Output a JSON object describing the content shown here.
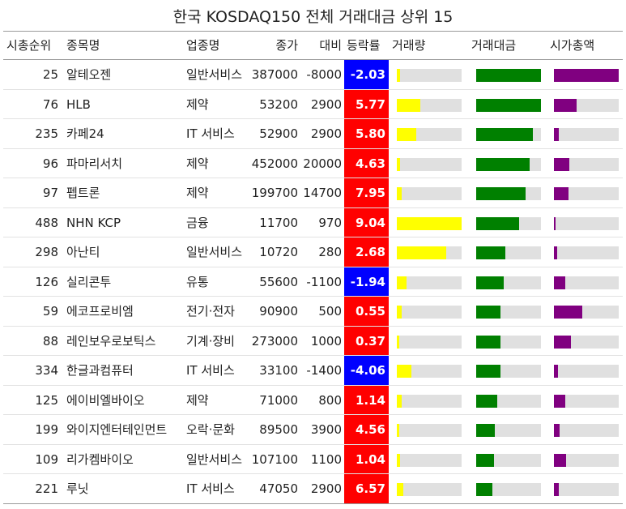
{
  "chart_data": {
    "type": "table",
    "title": "한국 KOSDAQ150 전체 거래대금 상위 15",
    "columns": [
      "시총순위",
      "종목명",
      "업종명",
      "종가",
      "대비",
      "등락률",
      "거래량",
      "거래대금",
      "시가총액"
    ],
    "colors": {
      "up": "#ff0000",
      "down": "#0000ff",
      "volume": "#ffff00",
      "trading_value": "#008000",
      "market_cap": "#800080",
      "bar_track": "#e0e0e0"
    },
    "bar_scale_note": "bar values are fractions of the column maximum",
    "rows": [
      {
        "rank": "25",
        "name": "알테오젠",
        "sector": "일반서비스",
        "close": "387000",
        "diff": "-8000",
        "change": "-2.03",
        "volume_frac": 0.05,
        "value_frac": 1.0,
        "cap_frac": 1.0
      },
      {
        "rank": "76",
        "name": "HLB",
        "sector": "제약",
        "close": "53200",
        "diff": "2900",
        "change": "5.77",
        "volume_frac": 0.36,
        "value_frac": 1.0,
        "cap_frac": 0.35
      },
      {
        "rank": "235",
        "name": "카페24",
        "sector": "IT 서비스",
        "close": "52900",
        "diff": "2900",
        "change": "5.80",
        "volume_frac": 0.3,
        "value_frac": 0.87,
        "cap_frac": 0.07
      },
      {
        "rank": "96",
        "name": "파마리서치",
        "sector": "제약",
        "close": "452000",
        "diff": "20000",
        "change": "4.63",
        "volume_frac": 0.05,
        "value_frac": 0.82,
        "cap_frac": 0.24
      },
      {
        "rank": "97",
        "name": "펩트론",
        "sector": "제약",
        "close": "199700",
        "diff": "14700",
        "change": "7.95",
        "volume_frac": 0.07,
        "value_frac": 0.76,
        "cap_frac": 0.23
      },
      {
        "rank": "488",
        "name": "NHN KCP",
        "sector": "금융",
        "close": "11700",
        "diff": "970",
        "change": "9.04",
        "volume_frac": 1.0,
        "value_frac": 0.66,
        "cap_frac": 0.02
      },
      {
        "rank": "298",
        "name": "아난티",
        "sector": "일반서비스",
        "close": "10720",
        "diff": "280",
        "change": "2.68",
        "volume_frac": 0.76,
        "value_frac": 0.45,
        "cap_frac": 0.05
      },
      {
        "rank": "126",
        "name": "실리콘투",
        "sector": "유통",
        "close": "55600",
        "diff": "-1100",
        "change": "-1.94",
        "volume_frac": 0.15,
        "value_frac": 0.42,
        "cap_frac": 0.17
      },
      {
        "rank": "59",
        "name": "에코프로비엠",
        "sector": "전기·전자",
        "close": "90900",
        "diff": "500",
        "change": "0.55",
        "volume_frac": 0.08,
        "value_frac": 0.38,
        "cap_frac": 0.44
      },
      {
        "rank": "88",
        "name": "레인보우로보틱스",
        "sector": "기계·장비",
        "close": "273000",
        "diff": "1000",
        "change": "0.37",
        "volume_frac": 0.04,
        "value_frac": 0.38,
        "cap_frac": 0.26
      },
      {
        "rank": "334",
        "name": "한글과컴퓨터",
        "sector": "IT 서비스",
        "close": "33100",
        "diff": "-1400",
        "change": "-4.06",
        "volume_frac": 0.22,
        "value_frac": 0.38,
        "cap_frac": 0.06
      },
      {
        "rank": "125",
        "name": "에이비엘바이오",
        "sector": "제약",
        "close": "71000",
        "diff": "800",
        "change": "1.14",
        "volume_frac": 0.08,
        "value_frac": 0.32,
        "cap_frac": 0.17
      },
      {
        "rank": "199",
        "name": "와이지엔터테인먼트",
        "sector": "오락·문화",
        "close": "89500",
        "diff": "3900",
        "change": "4.56",
        "volume_frac": 0.04,
        "value_frac": 0.29,
        "cap_frac": 0.09
      },
      {
        "rank": "109",
        "name": "리가켐바이오",
        "sector": "일반서비스",
        "close": "107100",
        "diff": "1100",
        "change": "1.04",
        "volume_frac": 0.05,
        "value_frac": 0.27,
        "cap_frac": 0.19
      },
      {
        "rank": "221",
        "name": "루닛",
        "sector": "IT 서비스",
        "close": "47050",
        "diff": "2900",
        "change": "6.57",
        "volume_frac": 0.1,
        "value_frac": 0.25,
        "cap_frac": 0.08
      }
    ]
  }
}
